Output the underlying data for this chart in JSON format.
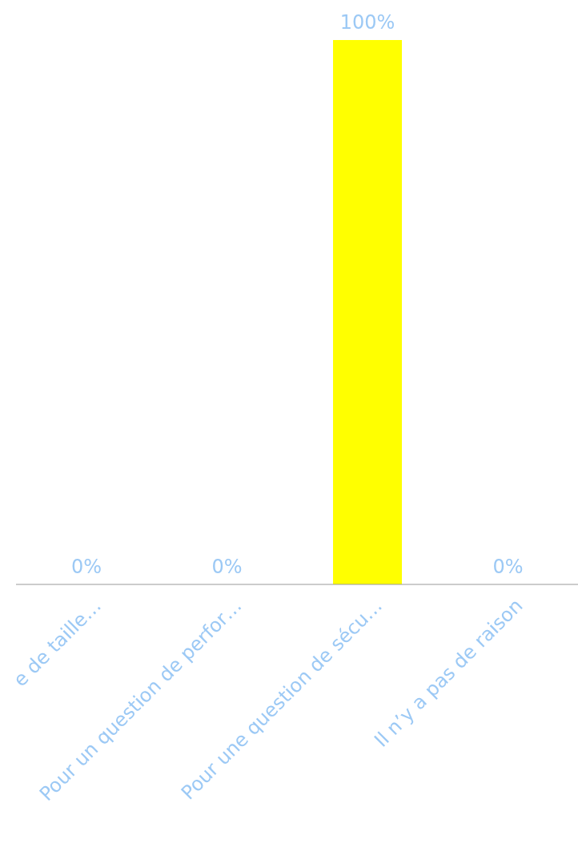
{
  "chart_data": {
    "type": "bar",
    "categories": [
      "e de taille…",
      "Pour un question de perfor…",
      "Pour une question de sécu…",
      "Il n’y a pas de raison"
    ],
    "values": [
      0,
      0,
      100,
      0
    ],
    "colors": [
      "#ff0000",
      "#ff9900",
      "#ffff00",
      "#99cc00"
    ],
    "value_labels": [
      "0%",
      "0%",
      "100%",
      "0%"
    ],
    "tick_labels": "x",
    "grid": false,
    "legend": false
  }
}
